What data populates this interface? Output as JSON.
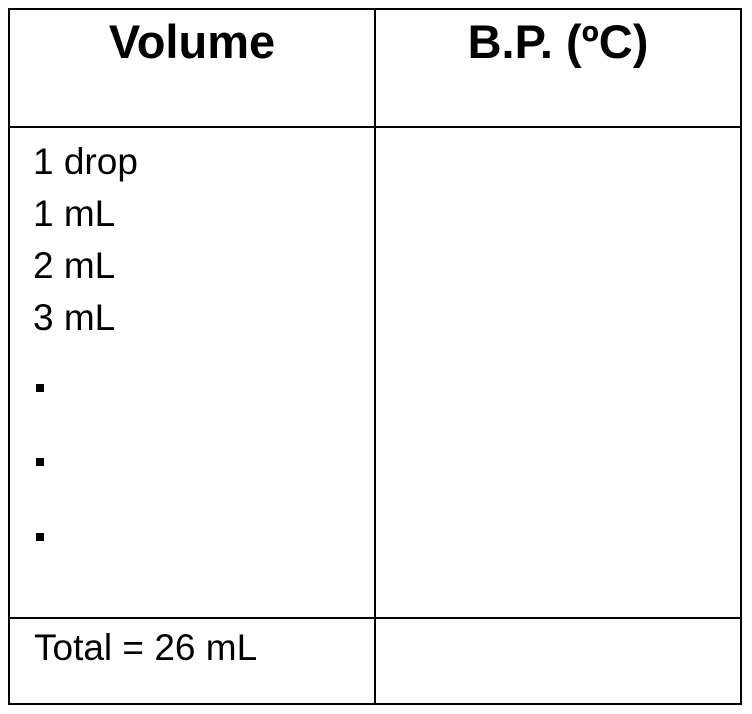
{
  "table": {
    "headers": [
      "Volume",
      "B.P. (ºC)"
    ],
    "volumes": [
      "1 drop",
      "1 mL",
      "2 mL",
      "3 mL"
    ],
    "continuation": [
      "·",
      "·",
      "·"
    ],
    "total_label": "Total = 26 mL",
    "bp_values": []
  }
}
